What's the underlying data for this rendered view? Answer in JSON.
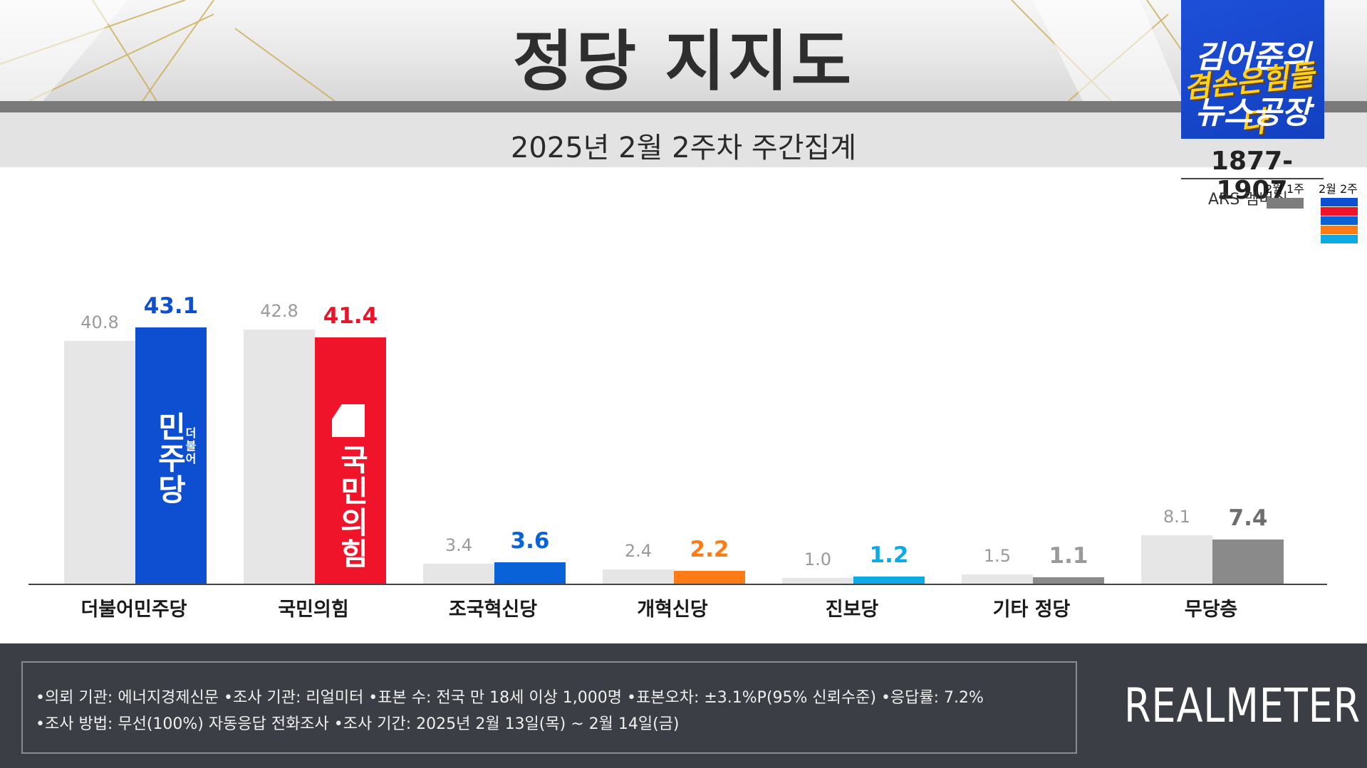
{
  "header": {
    "title": "정당 지지도",
    "subtitle": "2025년 2월 2주차 주간집계"
  },
  "logo": {
    "line1": "김어준의",
    "accent": "겸손은힘들다",
    "line2": "뉴스공장",
    "phone": "1877-1907",
    "ars": "ARS 멤버십"
  },
  "legend": {
    "prev_label": "2월 1주",
    "cur_label": "2월 2주"
  },
  "chart_data": {
    "type": "bar",
    "title": "정당 지지도",
    "subtitle": "2025년 2월 2주차 주간집계",
    "categories": [
      "더불어민주당",
      "국민의힘",
      "조국혁신당",
      "개혁신당",
      "진보당",
      "기타 정당",
      "무당층"
    ],
    "series": [
      {
        "name": "2월 1주",
        "values": [
          40.8,
          42.8,
          3.4,
          2.4,
          1.0,
          1.5,
          8.1
        ]
      },
      {
        "name": "2월 2주",
        "values": [
          43.1,
          41.4,
          3.6,
          2.2,
          1.2,
          1.1,
          7.4
        ]
      }
    ],
    "prev_labels": [
      "40.8",
      "42.8",
      "3.4",
      "2.4",
      "1.0",
      "1.5",
      "8.1"
    ],
    "cur_labels": [
      "43.1",
      "41.4",
      "3.6",
      "2.2",
      "1.2",
      "1.1",
      "7.4"
    ],
    "prev_color": "#e6e6e6",
    "cur_colors": [
      "#0d4fd0",
      "#f0142a",
      "#0a62d8",
      "#ff7b16",
      "#0eaae6",
      "#8a8a8a",
      "#8a8a8a"
    ],
    "cur_label_colors": [
      "#0d4fd0",
      "#e8142a",
      "#0a62d8",
      "#ff7b16",
      "#0eaae6",
      "#9a9a9a",
      "#6e6e6e"
    ],
    "ylim": [
      0,
      45
    ],
    "xlabel": "",
    "ylabel": ""
  },
  "bar_logos": {
    "democratic": "민주당",
    "democratic_small": "더불어",
    "ppp": "국민의힘"
  },
  "footer": {
    "line1": "•의뢰 기관: 에너지경제신문 •조사 기관: 리얼미터 •표본 수: 전국 만 18세 이상 1,000명 •표본오차: ±3.1%P(95% 신뢰수준) •응답률: 7.2%",
    "line2": "•조사 방법: 무선(100%) 자동응답 전화조사 •조사 기간: 2025년 2월 13일(목) ~ 2월 14일(금)",
    "brand": "REALMETER"
  },
  "legend_colors": [
    "#0d4fd0",
    "#f0142a",
    "#0a62d8",
    "#ff7b16",
    "#0eaae6"
  ]
}
